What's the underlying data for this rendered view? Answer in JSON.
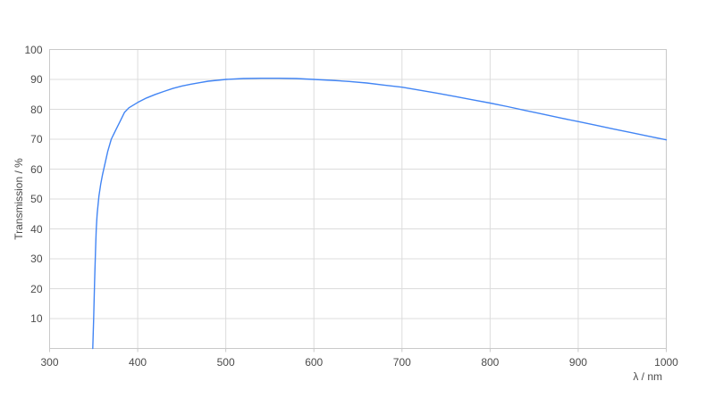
{
  "chart_data": {
    "type": "line",
    "title": "",
    "xlabel": "λ / nm",
    "ylabel": "Transmission / %",
    "xlim": [
      300,
      1000
    ],
    "ylim": [
      0,
      100
    ],
    "x_ticks": [
      300,
      400,
      500,
      600,
      700,
      800,
      900,
      1000
    ],
    "y_ticks": [
      10,
      20,
      30,
      40,
      50,
      60,
      70,
      80,
      90,
      100
    ],
    "grid": true,
    "legend": "none",
    "colors": {
      "line": "#4285f4",
      "gridline": "#dcdcdc",
      "border": "#c9c9c9",
      "tick_text": "#4b4b4b",
      "background": "#ffffff"
    },
    "series": [
      {
        "x": [
          349,
          350,
          351,
          352,
          353,
          354,
          355,
          356,
          358,
          360,
          363,
          366,
          370,
          375,
          380,
          385,
          390,
          400,
          410,
          420,
          430,
          440,
          450,
          460,
          470,
          480,
          490,
          500,
          520,
          540,
          560,
          580,
          600,
          620,
          640,
          660,
          680,
          700,
          720,
          740,
          760,
          780,
          800,
          820,
          840,
          860,
          880,
          900,
          920,
          940,
          960,
          980,
          1000
        ],
        "y": [
          0,
          10,
          22,
          32,
          40,
          45,
          48,
          51,
          55,
          58,
          62,
          66,
          70,
          73,
          76,
          79,
          80.5,
          82.3,
          83.8,
          85,
          86,
          87,
          87.8,
          88.4,
          88.9,
          89.4,
          89.7,
          90,
          90.3,
          90.4,
          90.4,
          90.3,
          90,
          89.7,
          89.3,
          88.8,
          88.1,
          87.4,
          86.4,
          85.4,
          84.3,
          83.2,
          82.1,
          80.9,
          79.6,
          78.4,
          77.1,
          75.9,
          74.7,
          73.4,
          72.2,
          71,
          69.8
        ]
      }
    ]
  }
}
